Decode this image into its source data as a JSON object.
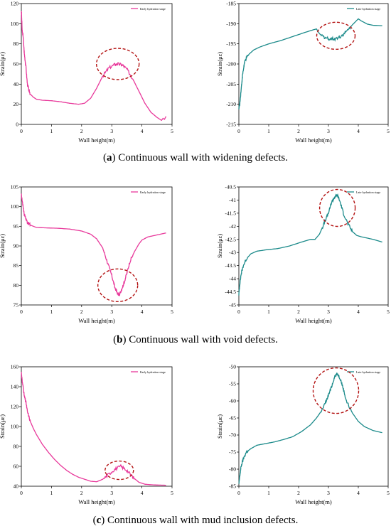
{
  "chart_data": [
    {
      "type": "line",
      "panel": "a-left",
      "legend": "Early hydration stage",
      "xlabel": "Wall height(m)",
      "ylabel": "Strain(με)",
      "xlim": [
        0,
        5
      ],
      "ylim": [
        0,
        120
      ],
      "xticks": [
        0,
        1,
        2,
        3,
        4,
        5
      ],
      "yticks": [
        0,
        20,
        40,
        60,
        80,
        100,
        120
      ],
      "color": "#e8399b",
      "series": [
        {
          "x": [
            0,
            0.03,
            0.06,
            0.1,
            0.15,
            0.2,
            0.25,
            0.3,
            0.4,
            0.5,
            0.7,
            1.0,
            1.3,
            1.6,
            1.9,
            2.1,
            2.3,
            2.5,
            2.7,
            2.9,
            3.1,
            3.2,
            3.35,
            3.5,
            3.7,
            3.9,
            4.1,
            4.3,
            4.5,
            4.6,
            4.65,
            4.7,
            4.75,
            4.8
          ],
          "y": [
            113,
            92,
            88,
            70,
            58,
            40,
            34,
            30,
            27,
            25,
            24,
            23.5,
            22.5,
            21,
            20,
            21,
            26,
            36,
            48,
            56,
            59.5,
            60,
            59,
            55,
            45,
            33,
            21,
            12,
            7,
            5,
            4,
            6,
            5,
            8
          ]
        }
      ],
      "annotation": {
        "x": 3.2,
        "y": 60
      }
    },
    {
      "type": "line",
      "panel": "a-right",
      "legend": "Late hydration stage",
      "xlabel": "Wall height(m)",
      "ylabel": "Strain(με)",
      "xlim": [
        0,
        5
      ],
      "ylim": [
        -215,
        -185
      ],
      "xticks": [
        0,
        1,
        2,
        3,
        4,
        5
      ],
      "yticks": [
        -215,
        -210,
        -205,
        -200,
        -195,
        -190,
        -185
      ],
      "color": "#1b8a8a",
      "series": [
        {
          "x": [
            0,
            0.03,
            0.08,
            0.12,
            0.18,
            0.25,
            0.35,
            0.5,
            0.7,
            1.0,
            1.4,
            1.8,
            2.2,
            2.5,
            2.6,
            2.7,
            2.85,
            3.0,
            3.2,
            3.4,
            3.6,
            3.8,
            4.0,
            4.1,
            4.3,
            4.5,
            4.8
          ],
          "y": [
            -211,
            -210,
            -206,
            -203,
            -200,
            -198.5,
            -197.5,
            -196.5,
            -195.8,
            -195,
            -194.2,
            -193.2,
            -192.2,
            -191.5,
            -191.3,
            -192.5,
            -193.3,
            -193.7,
            -193.8,
            -193.2,
            -192,
            -190.3,
            -188.8,
            -189.3,
            -190.1,
            -190.4,
            -190.5
          ]
        }
      ],
      "annotation": {
        "x": 3.25,
        "y": -193
      }
    },
    {
      "type": "line",
      "panel": "b-left",
      "legend": "Early hydration stage",
      "xlabel": "Wall height(m)",
      "ylabel": "Strain(με)",
      "xlim": [
        0,
        5
      ],
      "ylim": [
        75,
        105
      ],
      "xticks": [
        0,
        1,
        2,
        3,
        4,
        5
      ],
      "yticks": [
        75,
        80,
        85,
        90,
        95,
        100,
        105
      ],
      "color": "#e8399b",
      "series": [
        {
          "x": [
            0,
            0.05,
            0.1,
            0.2,
            0.3,
            0.5,
            0.8,
            1.2,
            1.6,
            2.0,
            2.3,
            2.5,
            2.7,
            2.85,
            3.0,
            3.1,
            3.2,
            3.25,
            3.3,
            3.4,
            3.5,
            3.6,
            3.75,
            3.9,
            4.0,
            4.2,
            4.5,
            4.8
          ],
          "y": [
            103,
            100.5,
            98,
            96,
            95.3,
            94.7,
            94.6,
            94.5,
            94.3,
            93.8,
            93,
            91.8,
            89.5,
            86,
            82.5,
            79.5,
            77.8,
            77.5,
            78.5,
            80.5,
            83,
            86,
            88.5,
            90.5,
            91.5,
            92.3,
            92.8,
            93.3
          ]
        }
      ],
      "annotation": {
        "x": 3.2,
        "y": 80
      }
    },
    {
      "type": "line",
      "panel": "b-right",
      "legend": "Late hydration stage",
      "xlabel": "Wall height(m)",
      "ylabel": "Strain(με)",
      "xlim": [
        0,
        5
      ],
      "ylim": [
        -45,
        -40.5
      ],
      "xticks": [
        0,
        1,
        2,
        3,
        4,
        5
      ],
      "yticks": [
        -45,
        -44.5,
        -44,
        -43.5,
        -43,
        -42.5,
        -42,
        -41.5,
        -41,
        -40.5
      ],
      "color": "#1b8a8a",
      "series": [
        {
          "x": [
            0,
            0.03,
            0.08,
            0.15,
            0.25,
            0.4,
            0.6,
            0.9,
            1.3,
            1.7,
            2.1,
            2.4,
            2.55,
            2.7,
            2.85,
            3.0,
            3.1,
            3.2,
            3.3,
            3.4,
            3.5,
            3.65,
            3.8,
            3.95,
            4.1,
            4.3,
            4.5,
            4.8
          ],
          "y": [
            -44.6,
            -44.2,
            -43.8,
            -43.5,
            -43.25,
            -43.05,
            -42.95,
            -42.9,
            -42.85,
            -42.75,
            -42.6,
            -42.5,
            -42.5,
            -42.3,
            -41.9,
            -41.5,
            -41.1,
            -40.9,
            -40.8,
            -41.1,
            -41.5,
            -41.9,
            -42.2,
            -42.35,
            -42.4,
            -42.45,
            -42.5,
            -42.6
          ]
        }
      ],
      "annotation": {
        "x": 3.3,
        "y": -41.3
      }
    },
    {
      "type": "line",
      "panel": "c-left",
      "legend": "Early hydration stage",
      "xlabel": "Wall height(m)",
      "ylabel": "Strain(με)",
      "xlim": [
        0,
        5
      ],
      "ylim": [
        40,
        160
      ],
      "xticks": [
        0,
        1,
        2,
        3,
        4,
        5
      ],
      "yticks": [
        40,
        60,
        80,
        100,
        120,
        140,
        160
      ],
      "color": "#e8399b",
      "series": [
        {
          "x": [
            0,
            0.03,
            0.06,
            0.1,
            0.15,
            0.2,
            0.3,
            0.4,
            0.5,
            0.7,
            0.9,
            1.1,
            1.3,
            1.5,
            1.7,
            1.9,
            2.1,
            2.3,
            2.5,
            2.7,
            2.9,
            3.1,
            3.3,
            3.5,
            3.7,
            3.9,
            4.1,
            4.3,
            4.5,
            4.8
          ],
          "y": [
            155,
            145,
            140,
            130,
            125,
            115,
            105,
            98,
            92,
            82,
            74,
            67,
            61,
            56,
            52,
            49,
            47,
            45,
            44.5,
            47,
            52,
            57,
            60,
            56,
            49,
            44,
            42,
            41.5,
            41.2,
            41
          ]
        }
      ],
      "annotation": {
        "x": 3.25,
        "y": 56
      }
    },
    {
      "type": "line",
      "panel": "c-right",
      "legend": "Late hydration stage",
      "xlabel": "Wall height(m)",
      "ylabel": "Strain(με)",
      "xlim": [
        0,
        5
      ],
      "ylim": [
        -85,
        -50
      ],
      "xticks": [
        0,
        1,
        2,
        3,
        4,
        5
      ],
      "yticks": [
        -85,
        -80,
        -75,
        -70,
        -65,
        -60,
        -55,
        -50
      ],
      "color": "#1b8a8a",
      "series": [
        {
          "x": [
            0,
            0.03,
            0.08,
            0.15,
            0.25,
            0.4,
            0.6,
            0.9,
            1.2,
            1.5,
            1.8,
            2.1,
            2.4,
            2.6,
            2.8,
            2.95,
            3.1,
            3.2,
            3.3,
            3.4,
            3.5,
            3.6,
            3.8,
            4.0,
            4.2,
            4.5,
            4.8
          ],
          "y": [
            -84.5,
            -82,
            -79,
            -77,
            -75,
            -74,
            -73,
            -72.5,
            -72,
            -71.3,
            -70.5,
            -69,
            -67,
            -65,
            -62.5,
            -59.5,
            -56,
            -53,
            -52,
            -53.5,
            -56.5,
            -60,
            -63.5,
            -66,
            -67.5,
            -68.7,
            -69.3
          ]
        }
      ],
      "annotation": {
        "x": 3.25,
        "y": -57
      }
    }
  ],
  "captions": {
    "a": {
      "prefix": "(",
      "letter": "a",
      "text": ") Continuous wall with widening defects."
    },
    "b": {
      "prefix": "(",
      "letter": "b",
      "text": ") Continuous wall with void defects."
    },
    "c": {
      "prefix": "(",
      "letter": "c",
      "text": ") Continuous wall with mud inclusion defects."
    }
  }
}
